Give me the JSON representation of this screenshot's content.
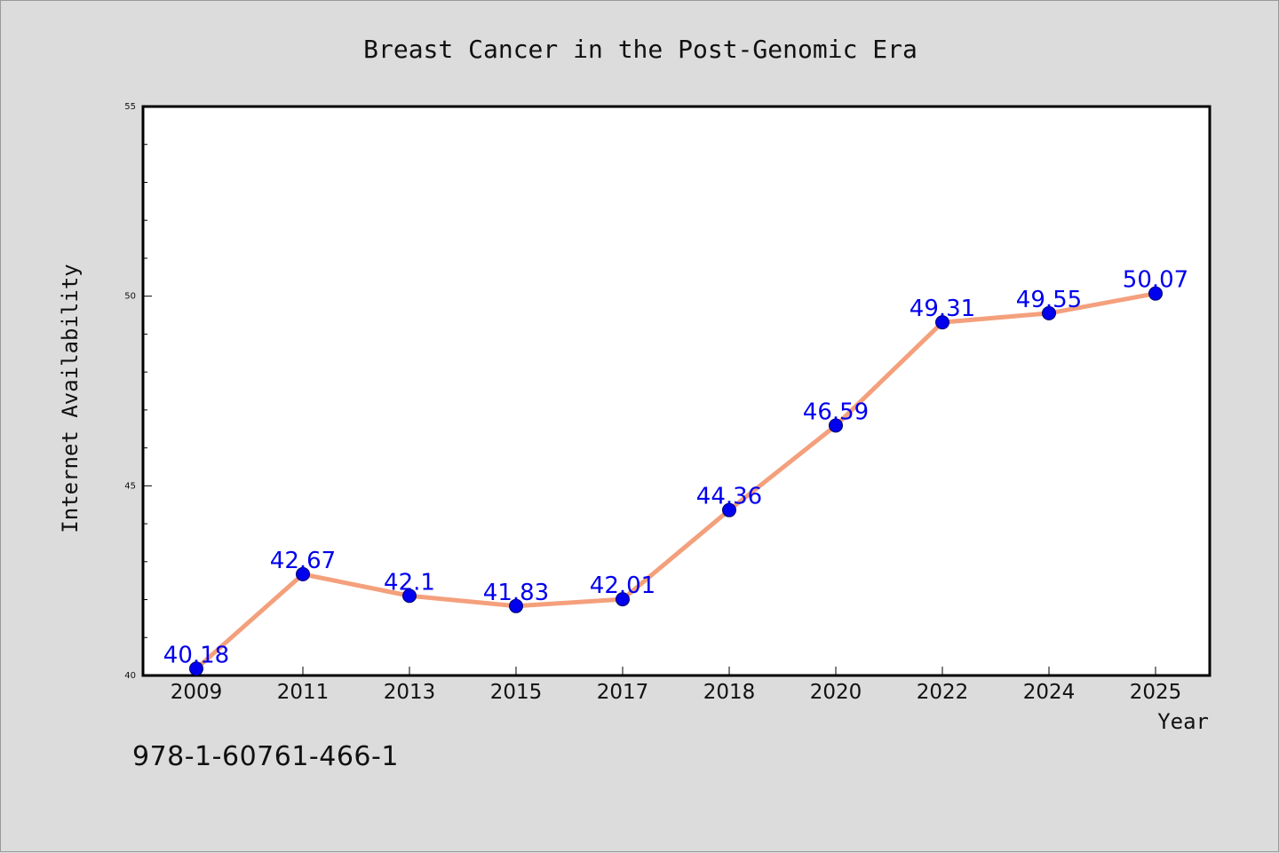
{
  "chart_data": {
    "type": "line",
    "title": "Breast Cancer in the Post-Genomic Era",
    "xlabel": "Year",
    "ylabel": "Internet Availability",
    "categories": [
      "2009",
      "2011",
      "2013",
      "2015",
      "2017",
      "2018",
      "2020",
      "2022",
      "2024",
      "2025"
    ],
    "series": [
      {
        "values": [
          40.18,
          42.67,
          42.1,
          41.83,
          42.01,
          44.36,
          46.59,
          49.31,
          49.55,
          50.07
        ],
        "labels": [
          "40.18",
          "42.67",
          "42.1",
          "41.83",
          "42.01",
          "44.36",
          "46.59",
          "49.31",
          "49.55",
          "50.07"
        ]
      }
    ],
    "ylim": [
      40,
      55
    ],
    "yticks": [
      "40",
      "45",
      "50",
      "55"
    ],
    "grid": false,
    "line_color": "#f4a07c",
    "marker_color": "#0000ee",
    "label_color": "#0000ee"
  },
  "footer": {
    "isbn": "978-1-60761-466-1"
  }
}
